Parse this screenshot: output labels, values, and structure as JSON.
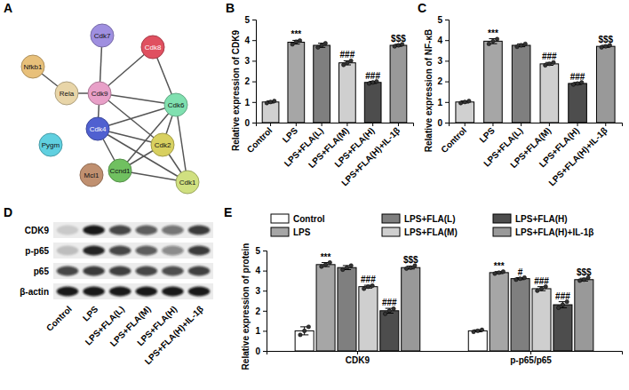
{
  "panel_labels": [
    "A",
    "B",
    "C",
    "D",
    "E"
  ],
  "network": {
    "nodes": [
      {
        "label": "Nfkb1",
        "color": "#e8c07a"
      },
      {
        "label": "Rela",
        "color": "#e8d5a8"
      },
      {
        "label": "Cdk7",
        "color": "#9f8fe0"
      },
      {
        "label": "Cdk9",
        "color": "#e8a0c8"
      },
      {
        "label": "Cdk8",
        "color": "#e05060"
      },
      {
        "label": "Cdk6",
        "color": "#80e0b0"
      },
      {
        "label": "Cdk4",
        "color": "#5060d0"
      },
      {
        "label": "Cdk2",
        "color": "#d8d060"
      },
      {
        "label": "Ccnd1",
        "color": "#70c060"
      },
      {
        "label": "Cdk1",
        "color": "#d0e080"
      },
      {
        "label": "Pygm",
        "color": "#60d0e0"
      },
      {
        "label": "Mcl1",
        "color": "#c09070"
      }
    ],
    "edges": [
      [
        0,
        1
      ],
      [
        1,
        3
      ],
      [
        3,
        2
      ],
      [
        3,
        4
      ],
      [
        3,
        5
      ],
      [
        3,
        6
      ],
      [
        3,
        7
      ],
      [
        4,
        5
      ],
      [
        5,
        6
      ],
      [
        5,
        7
      ],
      [
        5,
        8
      ],
      [
        5,
        9
      ],
      [
        6,
        7
      ],
      [
        6,
        8
      ],
      [
        7,
        8
      ],
      [
        7,
        9
      ],
      [
        8,
        9
      ],
      [
        6,
        9
      ]
    ]
  },
  "blot": {
    "rows": [
      "CDK9",
      "p-p65",
      "p65",
      "β-actin"
    ],
    "lanes": [
      "Control",
      "LPS",
      "LPS+FLA(L)",
      "LPS+FLA(M)",
      "LPS+FLA(H)",
      "LPS+FLA(H)+IL-1β"
    ],
    "bands": [
      [
        0.15,
        0.95,
        0.75,
        0.65,
        0.55,
        0.8
      ],
      [
        0.2,
        0.9,
        0.75,
        0.65,
        0.45,
        0.8
      ],
      [
        0.75,
        0.8,
        0.78,
        0.75,
        0.72,
        0.78
      ],
      [
        0.95,
        0.95,
        0.95,
        0.95,
        0.95,
        0.95
      ]
    ]
  },
  "chart_data": [
    {
      "type": "bar",
      "y_label": "Relative expression of CDK9",
      "categories": [
        "Control",
        "LPS",
        "LPS+FLA(L)",
        "LPS+FLA(M)",
        "LPS+FLA(H)",
        "LPS+FLA(H)+IL-1β"
      ],
      "values": [
        1.0,
        3.9,
        3.75,
        2.9,
        1.95,
        3.75
      ],
      "errors": [
        0.05,
        0.09,
        0.1,
        0.1,
        0.05,
        0.05
      ],
      "points": [
        [
          0.95,
          1.0,
          1.05
        ],
        [
          3.8,
          3.92,
          3.98
        ],
        [
          3.65,
          3.75,
          3.85
        ],
        [
          2.8,
          2.9,
          3.0
        ],
        [
          1.9,
          1.95,
          2.0
        ],
        [
          3.7,
          3.75,
          3.8
        ]
      ],
      "annotations": [
        null,
        "***",
        null,
        "###",
        "###",
        "$$$"
      ],
      "colors": [
        "#d0d0d0",
        "#a6a6a6",
        "#7f7f7f",
        "#cfcfcf",
        "#4d4d4d",
        "#999999"
      ],
      "ylim": [
        0,
        5
      ],
      "yticks": [
        0,
        1,
        2,
        3,
        4,
        5
      ]
    },
    {
      "type": "bar",
      "y_label": "Relative expression of NF-κB",
      "categories": [
        "Control",
        "LPS",
        "LPS+FLA(L)",
        "LPS+FLA(M)",
        "LPS+FLA(H)",
        "LPS+FLA(H)+IL-1β"
      ],
      "values": [
        1.0,
        3.95,
        3.75,
        2.85,
        1.9,
        3.7
      ],
      "errors": [
        0.05,
        0.12,
        0.07,
        0.07,
        0.05,
        0.05
      ],
      "points": [
        [
          0.95,
          1.0,
          1.05
        ],
        [
          3.82,
          3.95,
          4.05
        ],
        [
          3.68,
          3.75,
          3.82
        ],
        [
          2.78,
          2.85,
          2.92
        ],
        [
          1.85,
          1.9,
          1.95
        ],
        [
          3.65,
          3.7,
          3.75
        ]
      ],
      "annotations": [
        null,
        "***",
        null,
        "###",
        "###",
        "$$$"
      ],
      "colors": [
        "#d0d0d0",
        "#a6a6a6",
        "#7f7f7f",
        "#cfcfcf",
        "#4d4d4d",
        "#999999"
      ],
      "ylim": [
        0,
        5
      ],
      "yticks": [
        0,
        1,
        2,
        3,
        4,
        5
      ]
    },
    {
      "type": "bar",
      "y_label": "Relative expression of protein",
      "categories": [
        "CDK9",
        "p-p65/p65"
      ],
      "legend": "top",
      "series": [
        {
          "name": "Control",
          "color": "#ffffff",
          "values": [
            1.0,
            1.0
          ],
          "errors": [
            0.2,
            0.05
          ],
          "points": [
            [
              0.8,
              1.0,
              1.2
            ],
            [
              0.95,
              1.0,
              1.05
            ]
          ],
          "annotations": [
            null,
            null
          ]
        },
        {
          "name": "LPS",
          "color": "#a6a6a6",
          "values": [
            4.3,
            3.9
          ],
          "errors": [
            0.1,
            0.05
          ],
          "points": [
            [
              4.2,
              4.3,
              4.4
            ],
            [
              3.85,
              3.9,
              3.95
            ]
          ],
          "annotations": [
            "***",
            "***"
          ]
        },
        {
          "name": "LPS+FLA(L)",
          "color": "#7f7f7f",
          "values": [
            4.15,
            3.6
          ],
          "errors": [
            0.1,
            0.05
          ],
          "points": [
            [
              4.05,
              4.15,
              4.25
            ],
            [
              3.55,
              3.6,
              3.65
            ]
          ],
          "annotations": [
            null,
            "#"
          ]
        },
        {
          "name": "LPS+FLA(M)",
          "color": "#cfcfcf",
          "values": [
            3.2,
            3.1
          ],
          "errors": [
            0.07,
            0.1
          ],
          "points": [
            [
              3.1,
              3.2,
              3.25
            ],
            [
              3.0,
              3.1,
              3.2
            ]
          ],
          "annotations": [
            "###",
            "###"
          ]
        },
        {
          "name": "LPS+FLA(H)",
          "color": "#4d4d4d",
          "values": [
            2.0,
            2.3
          ],
          "errors": [
            0.12,
            0.15
          ],
          "points": [
            [
              1.85,
              2.0,
              2.1
            ],
            [
              2.15,
              2.3,
              2.45
            ]
          ],
          "annotations": [
            "###",
            "###"
          ]
        },
        {
          "name": "LPS+FLA(H)+IL-1β",
          "color": "#999999",
          "values": [
            4.15,
            3.55
          ],
          "errors": [
            0.07,
            0.07
          ],
          "points": [
            [
              4.1,
              4.15,
              4.25
            ],
            [
              3.5,
              3.55,
              3.65
            ]
          ],
          "annotations": [
            "$$$",
            "$$$"
          ]
        }
      ],
      "ylim": [
        0,
        5
      ],
      "yticks": [
        0,
        1,
        2,
        3,
        4,
        5
      ]
    }
  ]
}
